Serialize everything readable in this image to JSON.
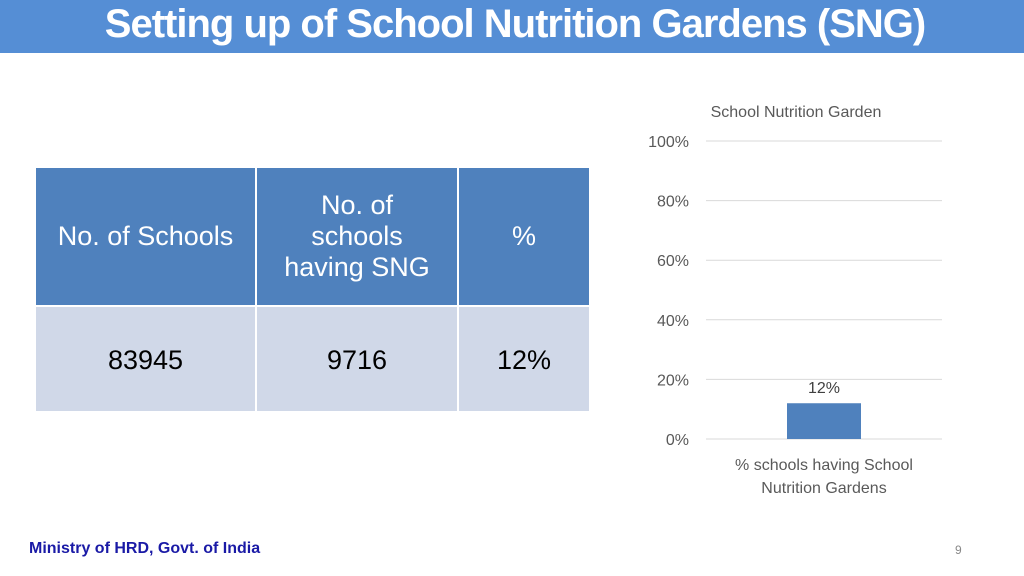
{
  "title": "Setting up  of School Nutrition Gardens (SNG)",
  "table": {
    "headers": [
      "No. of Schools",
      "No. of schools having SNG",
      "%"
    ],
    "row": [
      "83945",
      "9716",
      "12%"
    ]
  },
  "chart_data": {
    "type": "bar",
    "title": "School Nutrition Garden",
    "categories": [
      "% schools having School Nutrition Gardens"
    ],
    "values": [
      12
    ],
    "data_labels": [
      "12%"
    ],
    "ylim": [
      0,
      100
    ],
    "yticks": [
      "0%",
      "20%",
      "40%",
      "60%",
      "80%",
      "100%"
    ],
    "grid": true,
    "color": "#4f81bd"
  },
  "footer": "Ministry of HRD, Govt. of India",
  "page_number": "9"
}
